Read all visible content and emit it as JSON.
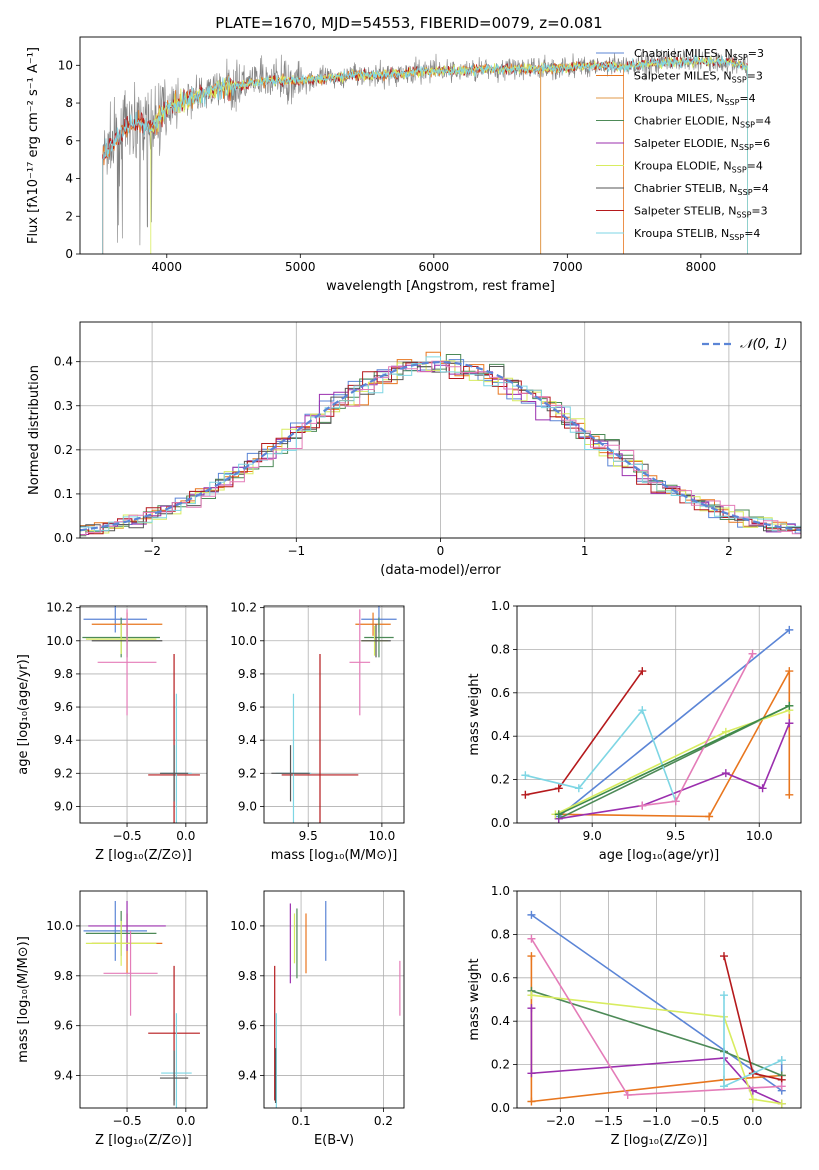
{
  "colors": {
    "MILES": [
      "#5b85d6",
      "#e8761e",
      "#e07c1c"
    ],
    "series_colors": {
      "Chabrier MILES": "#5b85d6",
      "Salpeter MILES": "#e8761e",
      "Kroupa MILES": "#e09848",
      "Chabrier ELODIE": "#4d8a57",
      "Salpeter ELODIE": "#9b2fae",
      "Kroupa ELODIE": "#d8ec60",
      "Chabrier STELIB": "#555555",
      "Salpeter STELIB": "#b5191c",
      "Kroupa STELIB": "#7ed6e4",
      "extra_pink": "#e47cb8",
      "extra_green": "#3e8a49"
    },
    "spectrum_data": "#808080",
    "normal": "#5b85d6",
    "grid": "#b0b0b0"
  },
  "chart_data": [
    {
      "type": "line",
      "title": "PLATE=1670, MJD=54553, FIBERID=0079, z=0.081",
      "xlabel": "wavelength [Angstrom, rest frame]",
      "ylabel": "Flux [fλ10⁻¹⁷ erg cm⁻² s⁻¹ A⁻¹]",
      "xlim": [
        3350,
        8750
      ],
      "ylim": [
        0,
        11.5
      ],
      "xticks": [
        "4000",
        "5000",
        "6000",
        "7000",
        "8000"
      ],
      "yticks": [
        "0",
        "2",
        "4",
        "6",
        "8",
        "10"
      ],
      "legend": [
        "Chabrier MILES, N_SSP=3",
        "Salpeter MILES, N_SSP=3",
        "Kroupa MILES, N_SSP=4",
        "Chabrier ELODIE, N_SSP=4",
        "Salpeter ELODIE, N_SSP=6",
        "Kroupa ELODIE, N_SSP=4",
        "Chabrier STELIB, N_SSP=4",
        "Salpeter STELIB, N_SSP=3",
        "Kroupa STELIB, N_SSP=4"
      ],
      "legend_location": "lower-right",
      "continuum_x": [
        3500,
        3600,
        3700,
        3800,
        3900,
        4000,
        4200,
        4400,
        4600,
        4800,
        5000,
        5200,
        5400,
        5600,
        5800,
        6000,
        6200,
        6400,
        6600,
        6800,
        7000,
        7200,
        7400,
        7600,
        7800,
        8000,
        8200,
        8350
      ],
      "continuum_y": [
        5.0,
        5.8,
        6.8,
        7.0,
        6.8,
        7.8,
        8.3,
        8.8,
        9.0,
        9.2,
        9.2,
        9.3,
        9.5,
        9.5,
        9.6,
        9.7,
        9.7,
        9.8,
        9.8,
        9.8,
        9.9,
        10.0,
        9.9,
        10.1,
        10.2,
        10.2,
        10.2,
        9.9
      ]
    },
    {
      "type": "line",
      "xlabel": "(data-model)/error",
      "ylabel": "Normed distribution",
      "xlim": [
        -2.5,
        2.5
      ],
      "ylim": [
        0,
        0.49
      ],
      "xticks": [
        "−2",
        "−1",
        "0",
        "1",
        "2"
      ],
      "yticks": [
        "0.0",
        "0.1",
        "0.2",
        "0.3",
        "0.4"
      ],
      "legend": [
        "𝒩(0, 1)"
      ],
      "legend_location": "upper-right",
      "note_bins": 40
    },
    {
      "type": "scatter",
      "xlabel": "Z [log₁₀(Z/Z⊙)]",
      "ylabel": "age  [log₁₀(age/yr)]",
      "xlim": [
        -0.9,
        0.18
      ],
      "ylim": [
        8.9,
        10.21
      ],
      "xticks": [
        "−0.5",
        "0.0"
      ],
      "yticks": [
        "9.0",
        "9.2",
        "9.4",
        "9.6",
        "9.8",
        "10.0",
        "10.2"
      ],
      "points": [
        {
          "x": -0.6,
          "y": 10.13,
          "xerr": 0.27,
          "yerr": 0.08,
          "series": "Chabrier MILES"
        },
        {
          "x": -0.5,
          "y": 10.1,
          "xerr": 0.3,
          "yerr": 0.07,
          "series": "Salpeter MILES"
        },
        {
          "x": -0.55,
          "y": 10.02,
          "xerr": 0.33,
          "yerr": 0.12,
          "series": "Chabrier ELODIE"
        },
        {
          "x": -0.55,
          "y": 10.01,
          "xerr": 0.3,
          "yerr": 0.09,
          "series": "Kroupa ELODIE"
        },
        {
          "x": -0.5,
          "y": 10.0,
          "xerr": 0.3,
          "yerr": 0.1,
          "series": "Chabrier STELIB"
        },
        {
          "x": -0.5,
          "y": 9.87,
          "xerr": 0.25,
          "yerr": 0.32,
          "series": "extra_pink"
        },
        {
          "x": -0.1,
          "y": 9.19,
          "xerr": 0.22,
          "yerr": 0.73,
          "series": "Salpeter STELIB"
        },
        {
          "x": -0.08,
          "y": 9.2,
          "xerr": 0.13,
          "yerr": 0.48,
          "series": "Kroupa STELIB"
        },
        {
          "x": -0.1,
          "y": 9.2,
          "xerr": 0.12,
          "yerr": 0.17,
          "series": "Chabrier STELIB"
        }
      ]
    },
    {
      "type": "scatter",
      "xlabel": "mass [log₁₀(M/M⊙)]",
      "xlim": [
        9.2,
        10.15
      ],
      "ylim": [
        8.9,
        10.21
      ],
      "xticks": [
        "9.5",
        "10.0"
      ],
      "yticks": [
        "9.0",
        "9.2",
        "9.4",
        "9.6",
        "9.8",
        "10.0",
        "10.2"
      ],
      "points": [
        {
          "x": 9.98,
          "y": 10.13,
          "xerr": 0.12,
          "yerr": 0.08,
          "series": "Chabrier MILES"
        },
        {
          "x": 9.94,
          "y": 10.1,
          "xerr": 0.12,
          "yerr": 0.07,
          "series": "Salpeter MILES"
        },
        {
          "x": 9.98,
          "y": 10.02,
          "xerr": 0.1,
          "yerr": 0.12,
          "series": "Chabrier ELODIE"
        },
        {
          "x": 9.95,
          "y": 10.0,
          "xerr": 0.09,
          "yerr": 0.09,
          "series": "Kroupa ELODIE"
        },
        {
          "x": 9.96,
          "y": 10.0,
          "xerr": 0.1,
          "yerr": 0.1,
          "series": "Chabrier STELIB"
        },
        {
          "x": 9.85,
          "y": 9.87,
          "xerr": 0.07,
          "yerr": 0.32,
          "series": "extra_pink"
        },
        {
          "x": 9.58,
          "y": 9.19,
          "xerr": 0.26,
          "yerr": 0.73,
          "series": "Salpeter STELIB"
        },
        {
          "x": 9.4,
          "y": 9.2,
          "xerr": 0.12,
          "yerr": 0.48,
          "series": "Kroupa STELIB"
        },
        {
          "x": 9.38,
          "y": 9.2,
          "xerr": 0.13,
          "yerr": 0.17,
          "series": "Chabrier STELIB"
        }
      ]
    },
    {
      "type": "line",
      "xlabel": "age  [log₁₀(age/yr)]",
      "ylabel": "mass weight",
      "xlim": [
        8.55,
        10.25
      ],
      "ylim": [
        0,
        1.0
      ],
      "xticks": [
        "9.0",
        "9.5",
        "10.0"
      ],
      "yticks": [
        "0.0",
        "0.2",
        "0.4",
        "0.6",
        "0.8",
        "1.0"
      ],
      "series": [
        {
          "series": "Chabrier MILES",
          "x": [
            8.8,
            10.18
          ],
          "y": [
            0.03,
            0.89
          ]
        },
        {
          "series": "Salpeter MILES",
          "x": [
            8.8,
            9.7,
            10.18,
            10.18
          ],
          "y": [
            0.04,
            0.03,
            0.7,
            0.13
          ]
        },
        {
          "series": "Chabrier ELODIE",
          "x": [
            8.8,
            10.18
          ],
          "y": [
            0.02,
            0.54
          ]
        },
        {
          "series": "Salpeter ELODIE",
          "x": [
            8.8,
            9.3,
            9.8,
            10.02,
            10.18,
            10.18
          ],
          "y": [
            0.02,
            0.08,
            0.23,
            0.16,
            0.46,
            0.46
          ]
        },
        {
          "series": "Kroupa ELODIE",
          "x": [
            8.78,
            9.8,
            10.18
          ],
          "y": [
            0.04,
            0.42,
            0.52
          ]
        },
        {
          "series": "Salpeter STELIB",
          "x": [
            8.6,
            8.8,
            9.3
          ],
          "y": [
            0.13,
            0.16,
            0.7
          ]
        },
        {
          "series": "Kroupa STELIB",
          "x": [
            8.6,
            8.92,
            9.3,
            9.5
          ],
          "y": [
            0.22,
            0.16,
            0.52,
            0.1
          ]
        },
        {
          "series": "extra_pink",
          "x": [
            9.3,
            9.5,
            9.96
          ],
          "y": [
            0.08,
            0.1,
            0.78
          ]
        },
        {
          "series": "extra_green",
          "x": [
            8.8,
            10.18
          ],
          "y": [
            0.04,
            0.54
          ]
        }
      ]
    },
    {
      "type": "scatter",
      "xlabel": "Z [log₁₀(Z/Z⊙)]",
      "ylabel": "mass [log₁₀(M/M⊙)]",
      "xlim": [
        -0.9,
        0.18
      ],
      "ylim": [
        9.27,
        10.14
      ],
      "xticks": [
        "−0.5",
        "0.0"
      ],
      "yticks": [
        "9.4",
        "9.6",
        "9.8",
        "10.0"
      ],
      "points": [
        {
          "x": -0.6,
          "y": 9.98,
          "xerr": 0.27,
          "yerr": 0.12,
          "series": "Chabrier MILES"
        },
        {
          "x": -0.5,
          "y": 9.93,
          "xerr": 0.3,
          "yerr": 0.12,
          "series": "Salpeter MILES"
        },
        {
          "x": -0.5,
          "y": 10.0,
          "xerr": 0.33,
          "yerr": 0.1,
          "series": "Salpeter ELODIE"
        },
        {
          "x": -0.55,
          "y": 9.97,
          "xerr": 0.3,
          "yerr": 0.09,
          "series": "Chabrier ELODIE"
        },
        {
          "x": -0.55,
          "y": 9.93,
          "xerr": 0.3,
          "yerr": 0.09,
          "series": "Kroupa ELODIE"
        },
        {
          "x": -0.47,
          "y": 9.81,
          "xerr": 0.23,
          "yerr": 0.17,
          "series": "extra_pink"
        },
        {
          "x": -0.1,
          "y": 9.57,
          "xerr": 0.22,
          "yerr": 0.27,
          "series": "Salpeter STELIB"
        },
        {
          "x": -0.08,
          "y": 9.41,
          "xerr": 0.13,
          "yerr": 0.24,
          "series": "Kroupa STELIB"
        },
        {
          "x": -0.1,
          "y": 9.39,
          "xerr": 0.12,
          "yerr": 0.11,
          "series": "Chabrier STELIB"
        }
      ]
    },
    {
      "type": "scatter",
      "xlabel": "E(B-V)",
      "xlim": [
        0.055,
        0.225
      ],
      "ylim": [
        9.27,
        10.14
      ],
      "xticks": [
        "0.1",
        "0.2"
      ],
      "yticks": [
        "9.4",
        "9.6",
        "9.8",
        "10.0"
      ],
      "points": [
        {
          "x": 0.13,
          "y": 9.98,
          "yerr": 0.12,
          "series": "Chabrier MILES"
        },
        {
          "x": 0.106,
          "y": 9.93,
          "yerr": 0.12,
          "series": "Salpeter MILES"
        },
        {
          "x": 0.087,
          "y": 9.93,
          "yerr": 0.16,
          "series": "Salpeter ELODIE"
        },
        {
          "x": 0.095,
          "y": 9.93,
          "yerr": 0.14,
          "series": "Chabrier ELODIE"
        },
        {
          "x": 0.092,
          "y": 9.95,
          "yerr": 0.1,
          "series": "Kroupa ELODIE"
        },
        {
          "x": 0.22,
          "y": 9.75,
          "yerr": 0.11,
          "series": "extra_pink"
        },
        {
          "x": 0.068,
          "y": 9.57,
          "yerr": 0.27,
          "series": "Salpeter STELIB"
        },
        {
          "x": 0.07,
          "y": 9.46,
          "yerr": 0.19,
          "series": "Kroupa STELIB"
        },
        {
          "x": 0.069,
          "y": 9.4,
          "yerr": 0.11,
          "series": "Chabrier STELIB"
        }
      ]
    },
    {
      "type": "line",
      "xlabel": "Z [log₁₀(Z/Z⊙)]",
      "ylabel": "mass weight",
      "xlim": [
        -2.45,
        0.5
      ],
      "ylim": [
        0,
        1.0
      ],
      "xticks": [
        "−2.0",
        "−1.5",
        "−1.0",
        "−0.5",
        "0.0"
      ],
      "yticks": [
        "0.0",
        "0.2",
        "0.4",
        "0.6",
        "0.8",
        "1.0"
      ],
      "series": [
        {
          "series": "Chabrier MILES",
          "x": [
            -2.3,
            0.3,
            0.3
          ],
          "y": [
            0.89,
            0.08,
            0.22
          ]
        },
        {
          "series": "Salpeter MILES",
          "x": [
            -2.3,
            -2.3,
            -0.3,
            0.3
          ],
          "y": [
            0.7,
            0.03,
            0.13,
            0.15
          ]
        },
        {
          "series": "Chabrier ELODIE",
          "x": [
            -2.3,
            -0.3,
            0.3
          ],
          "y": [
            0.54,
            0.26,
            0.15
          ]
        },
        {
          "series": "Salpeter ELODIE",
          "x": [
            -2.3,
            -2.3,
            -0.3,
            0.0,
            0.3
          ],
          "y": [
            0.46,
            0.16,
            0.23,
            0.08,
            0.02
          ]
        },
        {
          "series": "Kroupa ELODIE",
          "x": [
            -2.3,
            -0.3,
            0.0,
            0.3
          ],
          "y": [
            0.52,
            0.42,
            0.04,
            0.02
          ]
        },
        {
          "series": "Salpeter STELIB",
          "x": [
            -0.3,
            0.0,
            0.3
          ],
          "y": [
            0.7,
            0.16,
            0.13
          ]
        },
        {
          "series": "Kroupa STELIB",
          "x": [
            -0.3,
            -0.3,
            0.3
          ],
          "y": [
            0.52,
            0.1,
            0.22
          ]
        },
        {
          "series": "extra_pink",
          "x": [
            -2.3,
            -1.3,
            0.3
          ],
          "y": [
            0.78,
            0.06,
            0.1
          ]
        }
      ]
    }
  ]
}
